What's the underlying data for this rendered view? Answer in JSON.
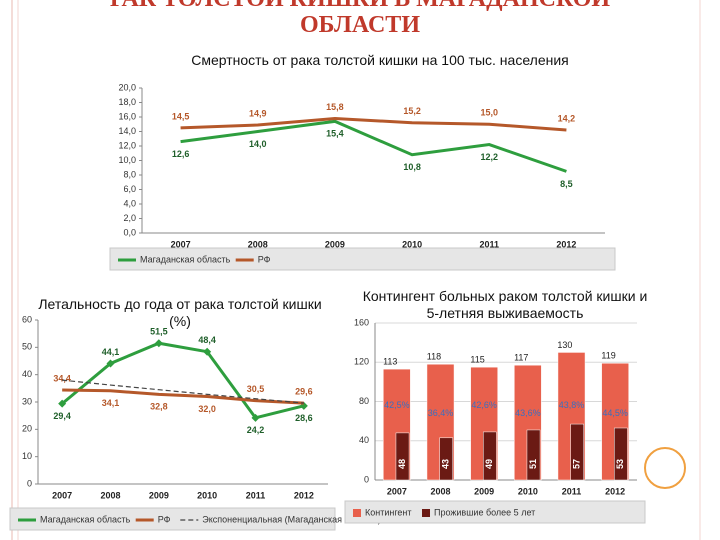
{
  "slide": {
    "title_lines": [
      "РАК ТОЛСТОЙ КИШКИ В МАГАДАНСКОЙ",
      "ОБЛАСТИ"
    ]
  },
  "chart_data": [
    {
      "type": "line",
      "title": "Смертность от рака толстой кишки на 100 тыс. населения",
      "categories": [
        "2007",
        "2008",
        "2009",
        "2010",
        "2011",
        "2012"
      ],
      "series": [
        {
          "name": "Магаданская область",
          "color": "#2e9e3e",
          "values": [
            12.6,
            14.0,
            15.4,
            10.8,
            12.2,
            8.5
          ],
          "value_labels": [
            "12,6",
            "14,0",
            "15,4",
            "10,8",
            "12,2",
            "8,5"
          ]
        },
        {
          "name": "РФ",
          "color": "#b5582a",
          "values": [
            14.5,
            14.9,
            15.8,
            15.2,
            15.0,
            14.2
          ],
          "value_labels": [
            "14,5",
            "14,9",
            "15,8",
            "15,2",
            "15,0",
            "14,2"
          ]
        }
      ],
      "ylim": [
        0,
        20
      ],
      "yticks": [
        {
          "value": 0,
          "label": "0,0"
        },
        {
          "value": 2,
          "label": "2,0"
        },
        {
          "value": 4,
          "label": "4,0"
        },
        {
          "value": 6,
          "label": "6,0"
        },
        {
          "value": 8,
          "label": "8,0"
        },
        {
          "value": 10,
          "label": "10,0"
        },
        {
          "value": 12,
          "label": "12,0"
        },
        {
          "value": 14,
          "label": "14,0"
        },
        {
          "value": 16,
          "label": "16,0"
        },
        {
          "value": 18,
          "label": "18,0"
        },
        {
          "value": 20,
          "label": "20,0"
        }
      ],
      "grid": false
    },
    {
      "type": "line",
      "title": "Летальность до года от рака толстой кишки (%)",
      "categories": [
        "2007",
        "2008",
        "2009",
        "2010",
        "2011",
        "2012"
      ],
      "series": [
        {
          "name": "Магаданская область",
          "color": "#2e9e3e",
          "marker": "diamond",
          "values": [
            29.4,
            44.1,
            51.5,
            48.4,
            24.2,
            28.6
          ],
          "value_labels": [
            "29,4",
            "44,1",
            "51,5",
            "48,4",
            "24,2",
            "28,6"
          ]
        },
        {
          "name": "РФ",
          "color": "#b5582a",
          "values": [
            34.4,
            34.1,
            32.8,
            32.0,
            30.5,
            29.6
          ],
          "value_labels": [
            "34,4",
            "34,1",
            "32,8",
            "32,0",
            "30,5",
            "29,6"
          ]
        },
        {
          "name": "Экспоненциальная (Магаданская область)",
          "color": "#444444",
          "dash": true,
          "values": [
            38,
            36.2,
            34.5,
            32.8,
            31.2,
            29.6
          ]
        }
      ],
      "ylim": [
        0,
        60
      ],
      "yticks": [
        0,
        10,
        20,
        30,
        40,
        50,
        60
      ],
      "grid": false
    },
    {
      "type": "bar",
      "title": "Контингент больных раком толстой кишки и 5-летняя выживаемость",
      "categories": [
        "2007",
        "2008",
        "2009",
        "2010",
        "2011",
        "2012"
      ],
      "series": [
        {
          "name": "Контингент",
          "color": "#e8604c",
          "values": [
            113,
            118,
            115,
            117,
            130,
            119
          ]
        },
        {
          "name": "Прожившие более 5 лет",
          "color": "#6b1a14",
          "values": [
            48,
            43,
            49,
            51,
            57,
            53
          ]
        }
      ],
      "percent_labels": [
        "42,5%",
        "36,4%",
        "42,6%",
        "43,6%",
        "43,8%",
        "44,5%"
      ],
      "ylim": [
        0,
        160
      ],
      "yticks": [
        0,
        40,
        80,
        120,
        160
      ],
      "grid": true
    }
  ]
}
